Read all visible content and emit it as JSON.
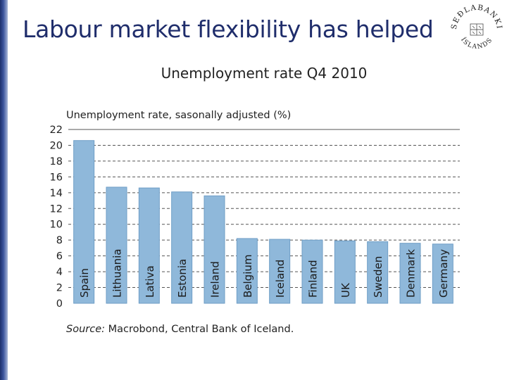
{
  "slide": {
    "title": "Labour market flexibility has helped"
  },
  "logo": {
    "name": "seal-logo",
    "text": "SEÐLABANKI ÍSLANDS"
  },
  "chart_data": {
    "type": "bar",
    "title": "Unemployment rate Q4 2010",
    "subtitle": "Unemployment rate, sasonally adjusted (%)",
    "categories": [
      "Spain",
      "Lithuania",
      "Lativa",
      "Estonia",
      "Ireland",
      "Belgium",
      "Iceland",
      "Finland",
      "UK",
      "Sweden",
      "Denmark",
      "Germany"
    ],
    "values": [
      20.6,
      14.7,
      14.6,
      14.1,
      13.6,
      8.2,
      8.1,
      8.0,
      7.9,
      7.8,
      7.6,
      7.5
    ],
    "ylim": [
      0,
      22
    ],
    "yticks": [
      0,
      2,
      4,
      6,
      8,
      10,
      12,
      14,
      16,
      18,
      20,
      22
    ],
    "xlabel": "",
    "ylabel": "",
    "grid": true,
    "legend": "none",
    "bar_color": "#8fb8da",
    "bar_border_color": "#6f9ec6"
  },
  "source": {
    "label": "Source:",
    "text": " Macrobond, Central Bank of Iceland."
  }
}
